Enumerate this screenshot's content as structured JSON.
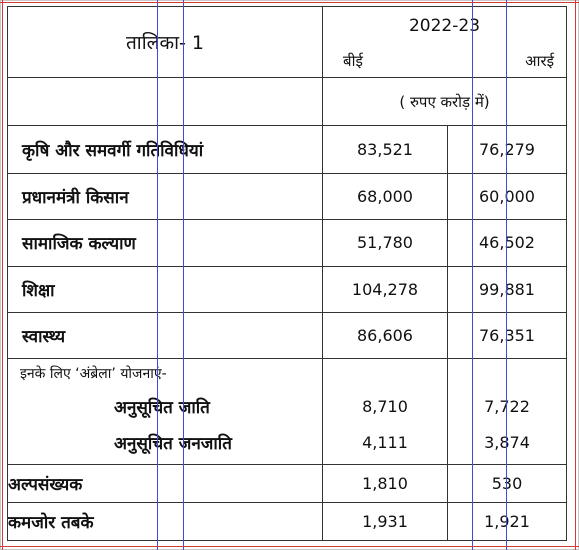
{
  "table": {
    "title": "तालिका- 1",
    "year": "2022-23",
    "col_be": "बीई",
    "col_re": "आरई",
    "unit": "( रुपए करोड़ में)",
    "rows": [
      {
        "label": "कृषि और समवर्गी गतिविधियां",
        "be": "83,521",
        "re": "76,279"
      },
      {
        "label": "प्रधानमंत्री किसान",
        "be": "68,000",
        "re": "60,000"
      },
      {
        "label": "सामाजिक कल्याण",
        "be": "51,780",
        "re": "46,502"
      },
      {
        "label": "शिक्षा",
        "be": "104,278",
        "re": "99,881"
      },
      {
        "label": "स्वास्थ्य",
        "be": "86,606",
        "re": "76,351"
      }
    ],
    "umbrella_intro": "इनके लिए ‘अंब्रेला’ योजनाएं-",
    "umbrella_rows": [
      {
        "label": "अनुसूचित जाति",
        "be": "8,710",
        "re": "7,722"
      },
      {
        "label": "अनुसूचित जनजाति",
        "be": "4,111",
        "re": "3,874"
      },
      {
        "label": "अल्पसंख्यक",
        "be": "1,810",
        "re": "530"
      },
      {
        "label": "कमजोर तबके",
        "be": "1,931",
        "re": "1,921"
      }
    ]
  },
  "colors": {
    "guide_blue": "#3a4fd6",
    "guide_red": "#d23a3a",
    "border": "#333333"
  }
}
